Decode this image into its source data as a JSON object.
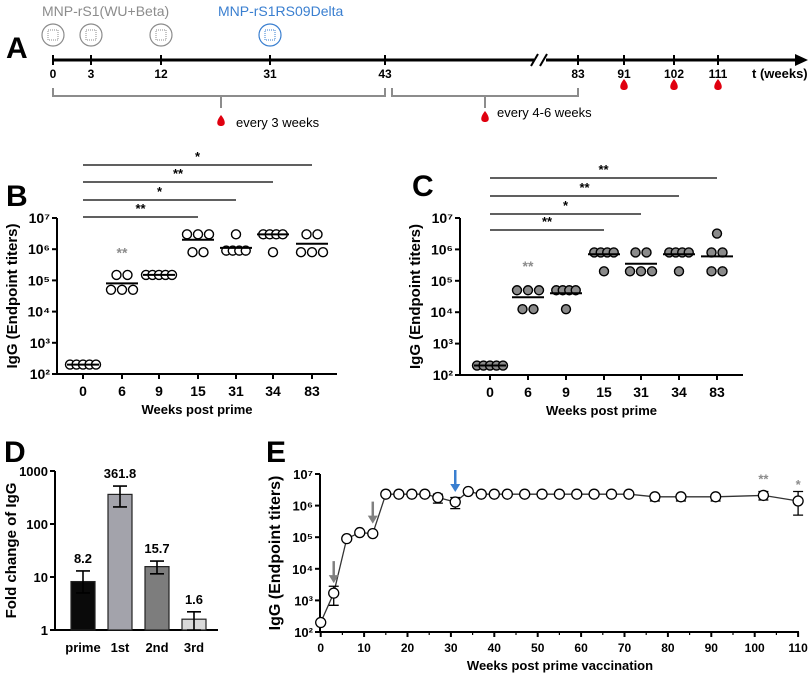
{
  "colors": {
    "axis": "#000000",
    "gray": "#8c8c8c",
    "blue": "#3a7fd0",
    "drop": "#e0000f",
    "filled": "#8a8a8a"
  },
  "panel_labels": [
    "A",
    "B",
    "C",
    "D",
    "E"
  ],
  "timeline": {
    "vaccine1": "MNP-rS1(WU+Beta)",
    "vaccine2": "MNP-rS1RS09Delta",
    "ticks": [
      "0",
      "3",
      "12",
      "31",
      "43",
      "83",
      "91",
      "102",
      "111"
    ],
    "unit": "t (weeks)",
    "bleed1": "every 3 weeks",
    "bleed2": "every 4-6 weeks"
  },
  "chart_data": [
    {
      "id": "B",
      "type": "scatter",
      "title": "",
      "xlabel": "Weeks post prime",
      "ylabel": "IgG (Endpoint titers)",
      "yscale": "log",
      "ylim": [
        100,
        10000000
      ],
      "ytick_labels": [
        "10²",
        "10³",
        "10⁴",
        "10⁵",
        "10⁶",
        "10⁷"
      ],
      "marker": "open",
      "categories": [
        "0",
        "6",
        "9",
        "15",
        "31",
        "34",
        "83"
      ],
      "points": [
        [
          200,
          200,
          200,
          200,
          200
        ],
        [
          150000,
          150000,
          50000,
          50000,
          50000
        ],
        [
          150000,
          150000,
          150000,
          150000,
          150000
        ],
        [
          3000000,
          3000000,
          3000000,
          800000,
          800000
        ],
        [
          3000000,
          900000,
          900000,
          900000,
          900000
        ],
        [
          3000000,
          3000000,
          3000000,
          3000000,
          800000
        ],
        [
          3000000,
          3000000,
          800000,
          800000,
          800000
        ]
      ],
      "means": [
        200,
        80000,
        150000,
        2000000,
        1100000,
        3000000,
        1500000
      ],
      "category_annotations": [
        {
          "category": "6",
          "text": "**"
        }
      ],
      "significance": [
        {
          "from": "0",
          "to": "83",
          "text": "*"
        },
        {
          "from": "0",
          "to": "34",
          "text": "**"
        },
        {
          "from": "0",
          "to": "31",
          "text": "*"
        },
        {
          "from": "0",
          "to": "15",
          "text": "**"
        }
      ]
    },
    {
      "id": "C",
      "type": "scatter",
      "title": "",
      "xlabel": "Weeks post prime",
      "ylabel": "IgG (Endpoint titers)",
      "yscale": "log",
      "ylim": [
        100,
        10000000
      ],
      "ytick_labels": [
        "10²",
        "10³",
        "10⁴",
        "10⁵",
        "10⁶",
        "10⁷"
      ],
      "marker": "filled",
      "categories": [
        "0",
        "6",
        "9",
        "15",
        "31",
        "34",
        "83"
      ],
      "points": [
        [
          200,
          200,
          200,
          200,
          200
        ],
        [
          50000,
          50000,
          50000,
          12500,
          12500
        ],
        [
          50000,
          50000,
          50000,
          50000,
          12500
        ],
        [
          800000,
          800000,
          800000,
          800000,
          200000
        ],
        [
          800000,
          800000,
          200000,
          200000,
          200000
        ],
        [
          800000,
          800000,
          800000,
          800000,
          200000
        ],
        [
          3200000,
          800000,
          800000,
          200000,
          200000
        ]
      ],
      "means": [
        200,
        30000,
        40000,
        700000,
        350000,
        700000,
        600000
      ],
      "category_annotations": [
        {
          "category": "6",
          "text": "**"
        }
      ],
      "significance": [
        {
          "from": "0",
          "to": "83",
          "text": "**"
        },
        {
          "from": "0",
          "to": "34",
          "text": "**"
        },
        {
          "from": "0",
          "to": "31",
          "text": "*"
        },
        {
          "from": "0",
          "to": "15",
          "text": "**"
        }
      ]
    },
    {
      "id": "D",
      "type": "bar",
      "title": "",
      "xlabel": "",
      "ylabel": "Fold change of IgG",
      "yscale": "log",
      "ylim": [
        1,
        1000
      ],
      "ytick_labels": [
        "1",
        "10",
        "100",
        "1000"
      ],
      "categories": [
        "prime",
        "1st",
        "2nd",
        "3rd"
      ],
      "values": [
        8.2,
        361.8,
        15.7,
        1.6
      ],
      "data_labels": [
        "8.2",
        "361.8",
        "15.7",
        "1.6"
      ],
      "errors": [
        [
          5,
          13
        ],
        [
          210,
          520
        ],
        [
          11.5,
          20
        ],
        [
          1,
          2.2
        ]
      ],
      "bar_colors": [
        "#0a0a0a",
        "#a3a3ab",
        "#7d7d7d",
        "#dadada"
      ]
    },
    {
      "id": "E",
      "type": "line",
      "title": "",
      "xlabel": "Weeks post prime vaccination",
      "ylabel": "IgG (Endpoint titers)",
      "yscale": "log",
      "ylim": [
        100,
        10000000
      ],
      "xlim": [
        0,
        110
      ],
      "ytick_labels": [
        "10²",
        "10³",
        "10⁴",
        "10⁵",
        "10⁶",
        "10⁷"
      ],
      "xtick_labels": [
        "0",
        "10",
        "20",
        "30",
        "40",
        "50",
        "60",
        "70",
        "80",
        "90",
        "100",
        "110"
      ],
      "x": [
        0,
        3,
        6,
        9,
        12,
        15,
        18,
        21,
        24,
        27,
        31,
        34,
        37,
        40,
        43,
        47,
        51,
        55,
        59,
        63,
        67,
        71,
        77,
        83,
        91,
        102,
        110
      ],
      "y": [
        200,
        1700,
        90000,
        140000,
        130000,
        2300000,
        2300000,
        2300000,
        2300000,
        1800000,
        1300000,
        2800000,
        2300000,
        2300000,
        2300000,
        2300000,
        2300000,
        2300000,
        2300000,
        2300000,
        2300000,
        2300000,
        1900000,
        1900000,
        1900000,
        2100000,
        1400000
      ],
      "errors": [
        null,
        [
          700,
          2800
        ],
        null,
        null,
        null,
        null,
        null,
        null,
        null,
        [
          1200000,
          2300000
        ],
        [
          800000,
          1800000
        ],
        null,
        null,
        null,
        null,
        null,
        null,
        null,
        null,
        null,
        null,
        null,
        [
          1400000,
          2200000
        ],
        [
          1400000,
          2200000
        ],
        [
          1400000,
          2200000
        ],
        [
          1500000,
          2800000
        ],
        [
          500000,
          2800000
        ]
      ],
      "arrows": [
        {
          "x": 3,
          "color": "gray"
        },
        {
          "x": 12,
          "color": "gray"
        },
        {
          "x": 31,
          "color": "blue"
        }
      ],
      "annotations": [
        {
          "x": 102,
          "text": "**"
        },
        {
          "x": 110,
          "text": "*"
        }
      ]
    }
  ]
}
